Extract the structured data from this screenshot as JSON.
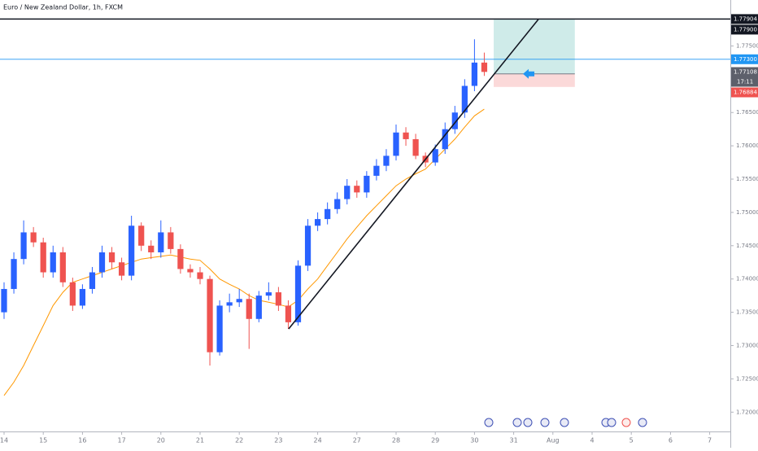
{
  "chart_data": {
    "type": "candlestick",
    "title": "Euro / New Zealand Dollar, 1h, FXCM",
    "up_color": "#2962ff",
    "down_color": "#ef5350",
    "xlim": [
      -0.1037,
      18.527
    ],
    "ylim": [
      1.7171,
      1.7819
    ],
    "xticks": [
      {
        "value": 0,
        "label": "14"
      },
      {
        "value": 1,
        "label": "15"
      },
      {
        "value": 2,
        "label": "16"
      },
      {
        "value": 3,
        "label": "17"
      },
      {
        "value": 4,
        "label": "20"
      },
      {
        "value": 5,
        "label": "21"
      },
      {
        "value": 6,
        "label": "22"
      },
      {
        "value": 7,
        "label": "23"
      },
      {
        "value": 8,
        "label": "24"
      },
      {
        "value": 9,
        "label": "27"
      },
      {
        "value": 10,
        "label": "28"
      },
      {
        "value": 11,
        "label": "29"
      },
      {
        "value": 12,
        "label": "30"
      },
      {
        "value": 13,
        "label": "31"
      },
      {
        "value": 14,
        "label": "Aug"
      },
      {
        "value": 15,
        "label": "4"
      },
      {
        "value": 16,
        "label": "5"
      },
      {
        "value": 17,
        "label": "6"
      },
      {
        "value": 18,
        "label": "7"
      }
    ],
    "yticks": [
      {
        "value": 1.72,
        "label": "1.72000"
      },
      {
        "value": 1.725,
        "label": "1.72500"
      },
      {
        "value": 1.73,
        "label": "1.73000"
      },
      {
        "value": 1.735,
        "label": "1.73500"
      },
      {
        "value": 1.74,
        "label": "1.74000"
      },
      {
        "value": 1.745,
        "label": "1.74500"
      },
      {
        "value": 1.75,
        "label": "1.75000"
      },
      {
        "value": 1.755,
        "label": "1.75500"
      },
      {
        "value": 1.76,
        "label": "1.76000"
      },
      {
        "value": 1.765,
        "label": "1.76500"
      },
      {
        "value": 1.775,
        "label": "1.77500"
      }
    ],
    "x": [
      0,
      0.25,
      0.5,
      0.75,
      1,
      1.25,
      1.5,
      1.75,
      2,
      2.25,
      2.5,
      2.75,
      3,
      3.25,
      3.5,
      3.75,
      4,
      4.25,
      4.5,
      4.75,
      5,
      5.25,
      5.5,
      5.75,
      6,
      6.25,
      6.5,
      6.75,
      7,
      7.25,
      7.5,
      7.75,
      8,
      8.25,
      8.5,
      8.75,
      9,
      9.25,
      9.5,
      9.75,
      10,
      10.25,
      10.5,
      10.75,
      11,
      11.25,
      11.5,
      11.75,
      12,
      12.25
    ],
    "open": [
      1.735,
      1.7385,
      1.743,
      1.747,
      1.7455,
      1.741,
      1.744,
      1.7395,
      1.736,
      1.7385,
      1.741,
      1.744,
      1.7425,
      1.7405,
      1.748,
      1.745,
      1.744,
      1.747,
      1.7445,
      1.7415,
      1.741,
      1.74,
      1.729,
      1.736,
      1.7365,
      1.737,
      1.734,
      1.7375,
      1.738,
      1.736,
      1.7335,
      1.742,
      1.748,
      1.749,
      1.7505,
      1.752,
      1.754,
      1.753,
      1.7555,
      1.757,
      1.7585,
      1.762,
      1.761,
      1.7585,
      1.7575,
      1.7595,
      1.7625,
      1.765,
      1.769,
      1.7725
    ],
    "high": [
      1.7395,
      1.744,
      1.7488,
      1.7478,
      1.7462,
      1.745,
      1.7448,
      1.7402,
      1.7392,
      1.7418,
      1.745,
      1.7448,
      1.7432,
      1.7495,
      1.7485,
      1.7458,
      1.7488,
      1.7478,
      1.7452,
      1.7422,
      1.7418,
      1.7405,
      1.7368,
      1.7378,
      1.7385,
      1.7378,
      1.7382,
      1.7395,
      1.7388,
      1.7368,
      1.7428,
      1.749,
      1.75,
      1.7515,
      1.753,
      1.755,
      1.7548,
      1.7562,
      1.758,
      1.7595,
      1.7632,
      1.7628,
      1.7618,
      1.759,
      1.7602,
      1.7635,
      1.766,
      1.77,
      1.776,
      1.774
    ],
    "low": [
      1.734,
      1.7378,
      1.7422,
      1.7448,
      1.7402,
      1.7402,
      1.7388,
      1.7352,
      1.7355,
      1.7378,
      1.7402,
      1.7415,
      1.7398,
      1.7398,
      1.7442,
      1.743,
      1.7432,
      1.7438,
      1.7408,
      1.7402,
      1.7392,
      1.727,
      1.7285,
      1.735,
      1.7358,
      1.7295,
      1.7335,
      1.7368,
      1.7352,
      1.7325,
      1.733,
      1.7412,
      1.7472,
      1.7482,
      1.7498,
      1.7512,
      1.7522,
      1.7522,
      1.7548,
      1.7562,
      1.7578,
      1.76,
      1.758,
      1.7568,
      1.757,
      1.7588,
      1.7618,
      1.7642,
      1.7682,
      1.7705
    ],
    "close": [
      1.7385,
      1.743,
      1.747,
      1.7455,
      1.741,
      1.744,
      1.7395,
      1.736,
      1.7385,
      1.741,
      1.744,
      1.7425,
      1.7405,
      1.748,
      1.745,
      1.744,
      1.747,
      1.7445,
      1.7415,
      1.741,
      1.74,
      1.729,
      1.736,
      1.7365,
      1.737,
      1.734,
      1.7375,
      1.738,
      1.736,
      1.7335,
      1.742,
      1.748,
      1.749,
      1.7505,
      1.752,
      1.754,
      1.753,
      1.7555,
      1.757,
      1.7585,
      1.762,
      1.761,
      1.7585,
      1.7575,
      1.7595,
      1.7625,
      1.765,
      1.769,
      1.7725,
      1.7711
    ],
    "moving_average": {
      "color": "#ff9800",
      "values": [
        1.7225,
        1.7245,
        1.727,
        1.73,
        1.733,
        1.736,
        1.738,
        1.7395,
        1.74,
        1.7405,
        1.741,
        1.7415,
        1.742,
        1.7425,
        1.743,
        1.7432,
        1.7434,
        1.7436,
        1.7433,
        1.743,
        1.7428,
        1.7415,
        1.74,
        1.7392,
        1.7385,
        1.7375,
        1.7368,
        1.7365,
        1.7362,
        1.7358,
        1.7368,
        1.7385,
        1.74,
        1.742,
        1.744,
        1.746,
        1.7478,
        1.7495,
        1.751,
        1.7525,
        1.754,
        1.755,
        1.7558,
        1.7565,
        1.758,
        1.7595,
        1.761,
        1.7628,
        1.7645,
        1.7655
      ]
    },
    "trendline": {
      "x": [
        7.26,
        13.63
      ],
      "y": [
        1.7325,
        1.779
      ]
    },
    "position": {
      "x": [
        12.49,
        14.56
      ],
      "entry": 1.7708,
      "target": 1.77904,
      "stop": 1.76884
    },
    "horizontal_lines": [
      {
        "value": 1.77904,
        "color": "#131722"
      },
      {
        "value": 1.773,
        "color": "#2196f3"
      }
    ],
    "price_tags": [
      {
        "value": 1.77904,
        "label": "1.77904",
        "color": "#131722"
      },
      {
        "value": 1.779,
        "label": "1.77900",
        "color": "#131722"
      },
      {
        "value": 1.773,
        "label": "1.77300",
        "color": "#2196f3"
      },
      {
        "value": 1.77108,
        "label": "1.77108",
        "color": "#5d606b"
      },
      {
        "value": 1.76884,
        "label": "1.76884",
        "color": "#ef5350"
      }
    ],
    "countdown": "17:11"
  }
}
